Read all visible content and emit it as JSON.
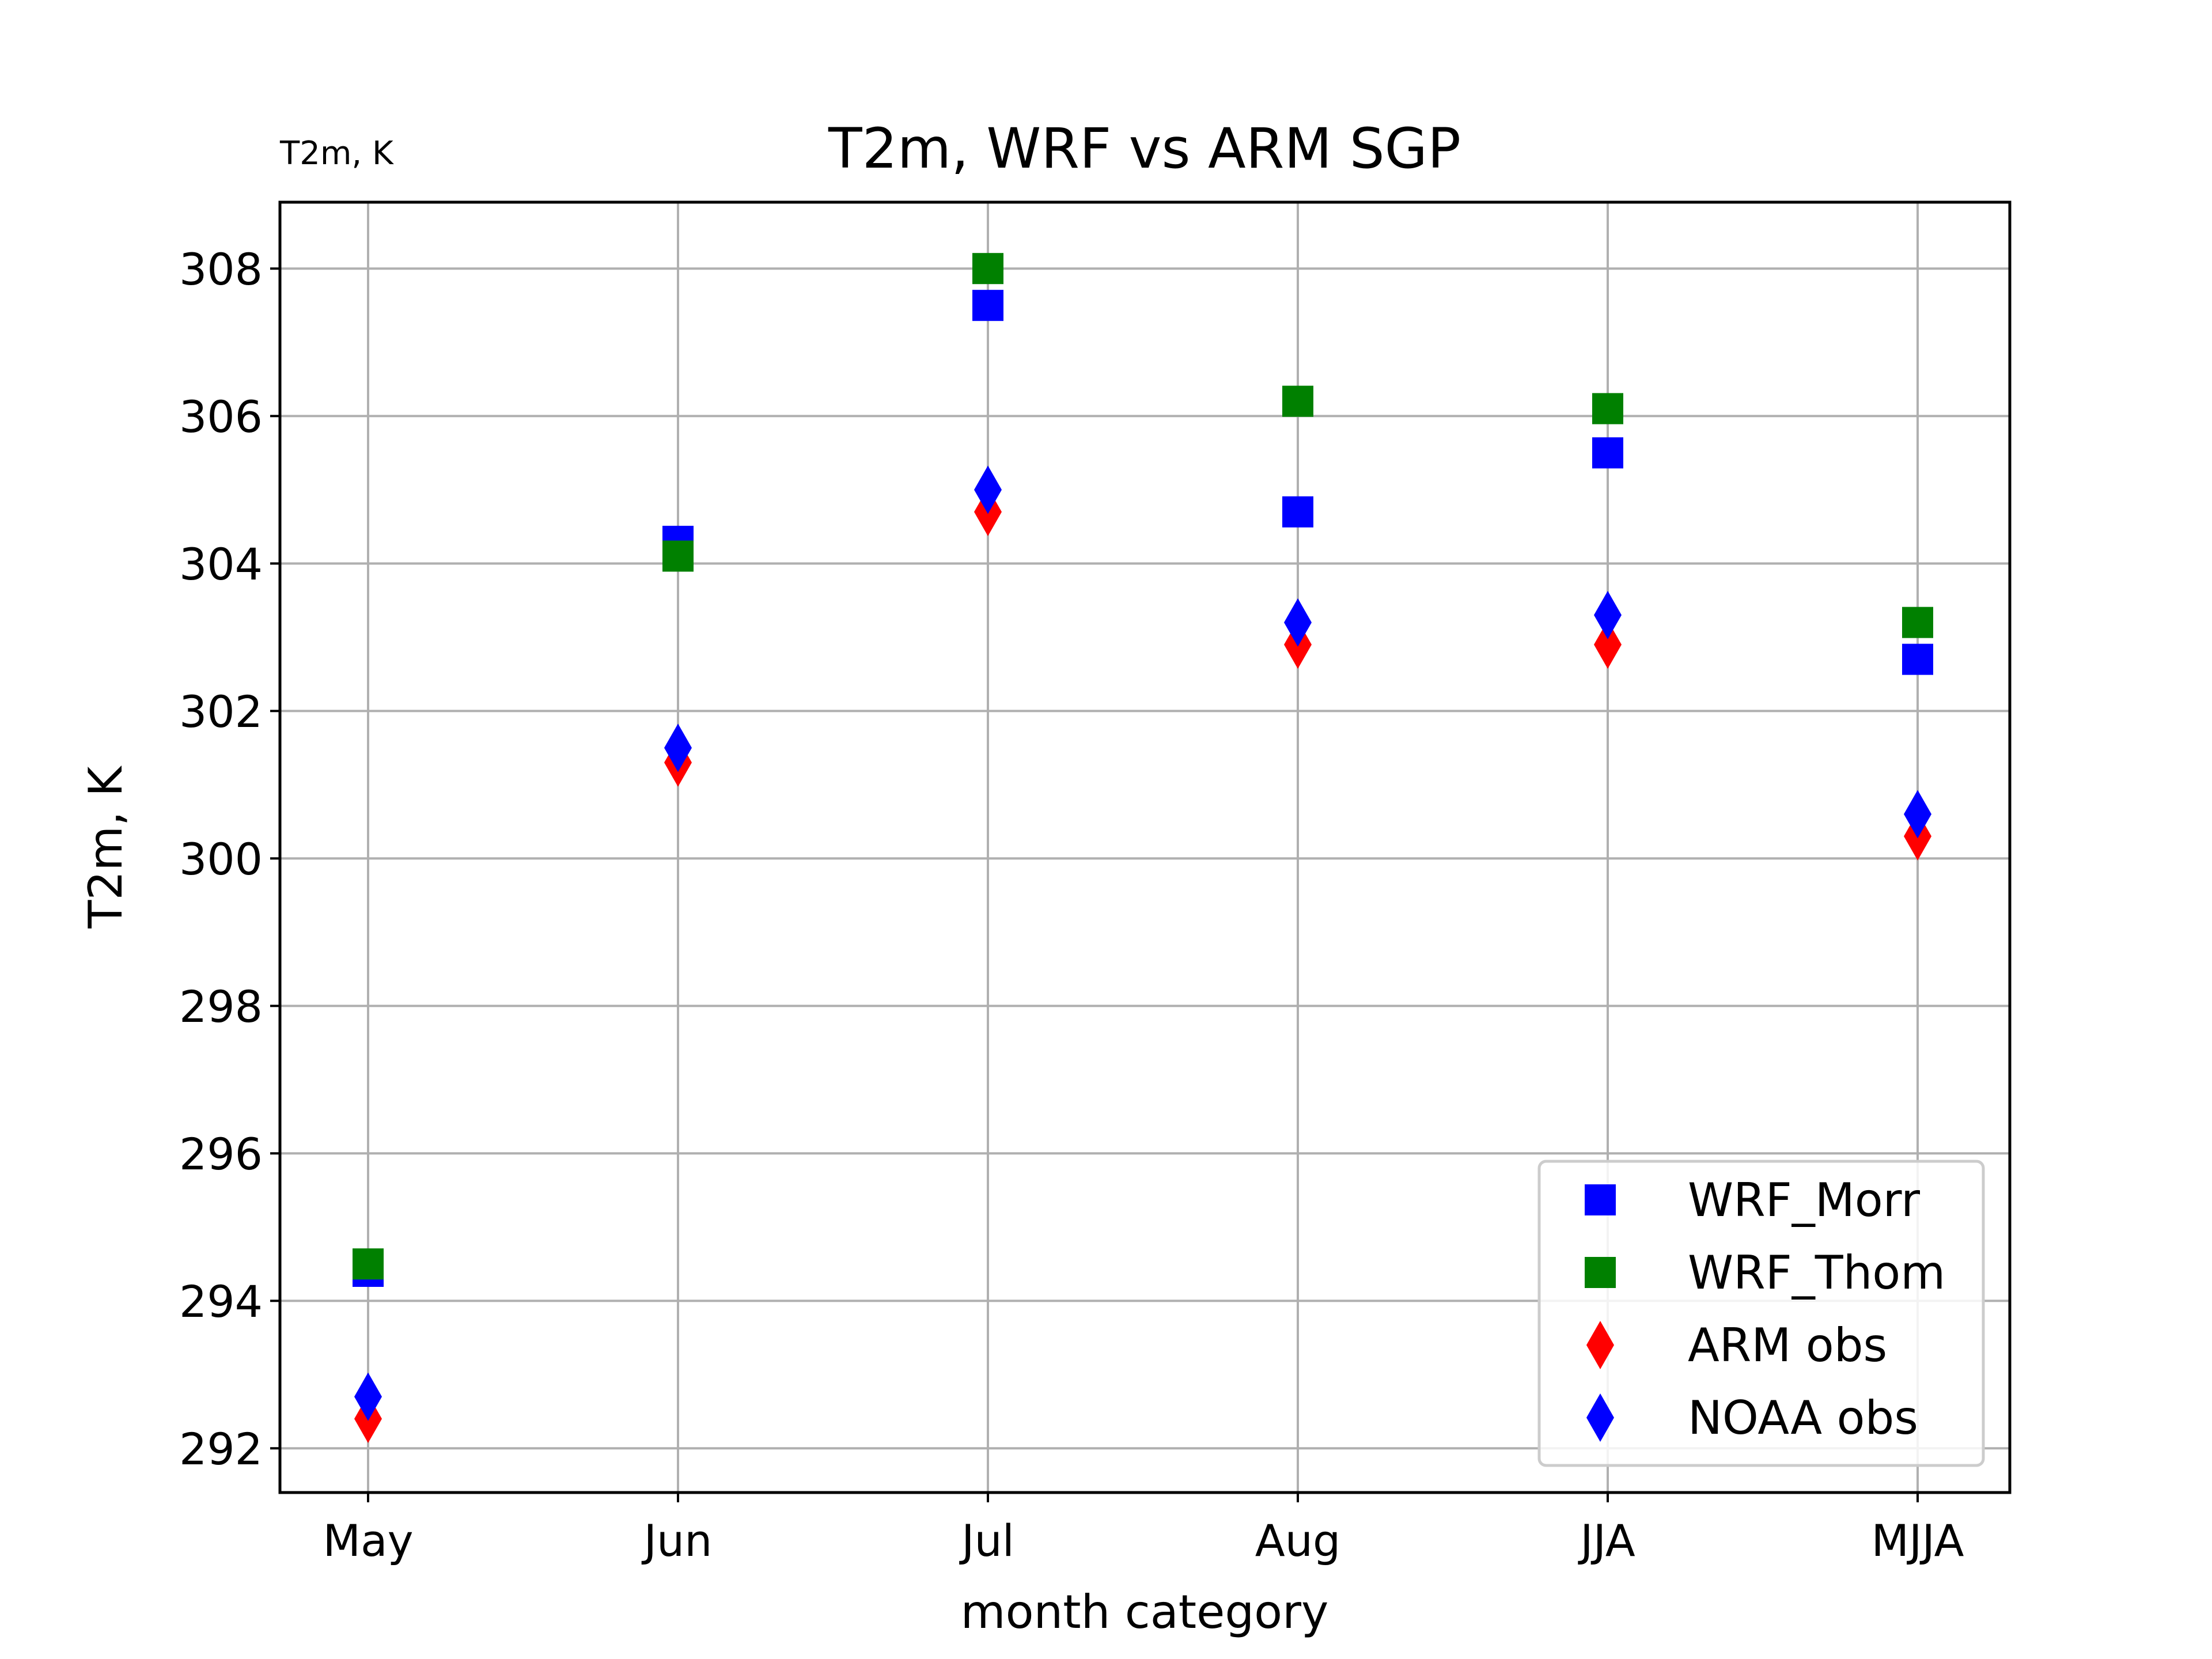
{
  "chart_data": {
    "type": "scatter",
    "title": "T2m, WRF vs ARM SGP",
    "corner_label": "T2m, K",
    "xlabel": "month category",
    "ylabel": "T2m, K",
    "categories": [
      "May",
      "Jun",
      "Jul",
      "Aug",
      "JJA",
      "MJJA"
    ],
    "yticks": [
      292,
      294,
      296,
      298,
      300,
      302,
      304,
      306,
      308
    ],
    "ylim": [
      291.4,
      308.9
    ],
    "grid": true,
    "legend_position": "lower-right",
    "series": [
      {
        "name": "WRF_Morr",
        "marker": "square",
        "color": "#0000ff",
        "values": [
          294.4,
          304.3,
          307.5,
          304.7,
          305.5,
          302.7
        ]
      },
      {
        "name": "WRF_Thom",
        "marker": "square",
        "color": "#008000",
        "values": [
          294.5,
          304.1,
          308.0,
          306.2,
          306.1,
          303.2
        ]
      },
      {
        "name": "ARM obs",
        "marker": "diamond",
        "color": "#ff0000",
        "values": [
          292.4,
          301.3,
          304.7,
          302.9,
          302.9,
          300.3
        ]
      },
      {
        "name": "NOAA obs",
        "marker": "diamond",
        "color": "#0000ff",
        "values": [
          292.7,
          301.5,
          305.0,
          303.2,
          303.3,
          300.6
        ]
      }
    ]
  }
}
